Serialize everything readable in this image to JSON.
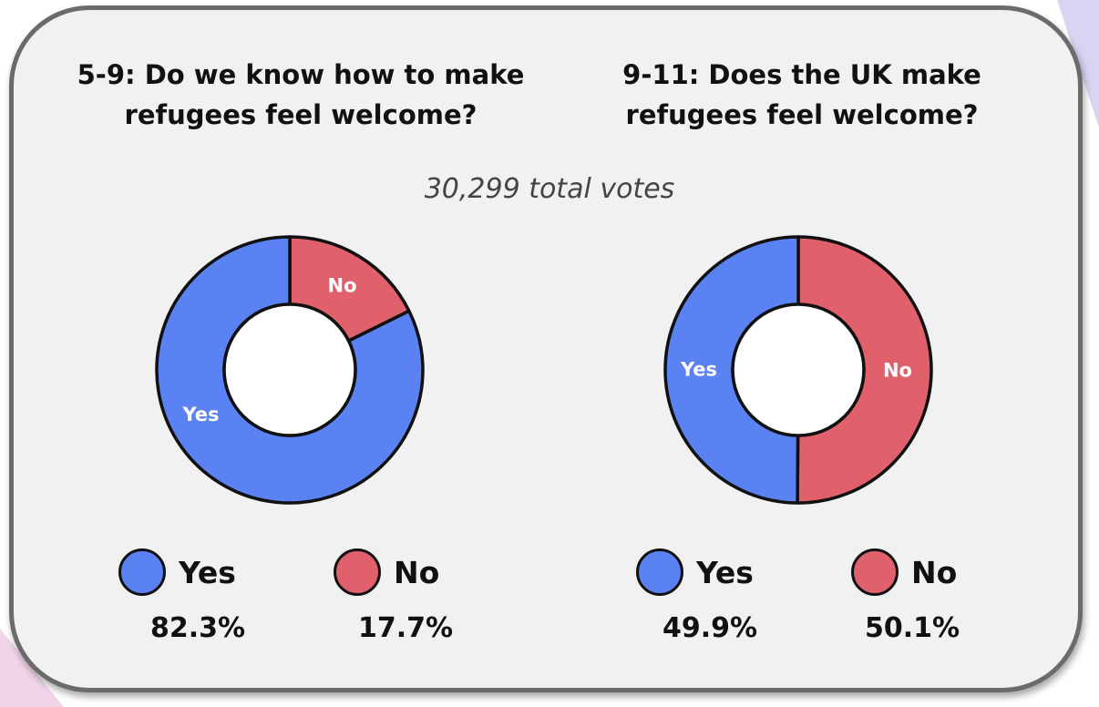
{
  "subtitle": "30,299 total votes",
  "colors": {
    "yes": "#5b82f2",
    "no": "#e0606b",
    "outline": "#111111"
  },
  "chart_data": [
    {
      "type": "pie",
      "title": "5-9: Do we know how to make\nrefugees feel welcome?",
      "categories": [
        "Yes",
        "No"
      ],
      "values": [
        82.3,
        17.7
      ],
      "value_labels": [
        "82.3%",
        "17.7%"
      ],
      "legend": "bottom"
    },
    {
      "type": "pie",
      "title": "9-11: Does the UK make\nrefugees feel welcome?",
      "categories": [
        "Yes",
        "No"
      ],
      "values": [
        49.9,
        50.1
      ],
      "value_labels": [
        "49.9%",
        "50.1%"
      ],
      "legend": "bottom"
    }
  ]
}
